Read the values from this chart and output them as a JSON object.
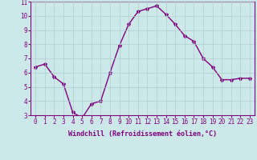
{
  "x": [
    0,
    1,
    2,
    3,
    4,
    5,
    6,
    7,
    8,
    9,
    10,
    11,
    12,
    13,
    14,
    15,
    16,
    17,
    18,
    19,
    20,
    21,
    22,
    23
  ],
  "y": [
    6.4,
    6.6,
    5.7,
    5.2,
    3.2,
    2.8,
    3.8,
    4.0,
    6.0,
    7.9,
    9.4,
    10.3,
    10.5,
    10.7,
    10.1,
    9.4,
    8.6,
    8.2,
    7.0,
    6.4,
    5.5,
    5.5,
    5.6,
    5.6
  ],
  "line_color": "#800080",
  "marker": "*",
  "marker_size": 3,
  "background_color": "#cce8e8",
  "grid_color": "#b0cccc",
  "xlabel": "Windchill (Refroidissement éolien,°C)",
  "xlabel_color": "#800080",
  "tick_color": "#800080",
  "ylim": [
    3,
    11
  ],
  "xlim": [
    -0.5,
    23.5
  ],
  "yticks": [
    3,
    4,
    5,
    6,
    7,
    8,
    9,
    10,
    11
  ],
  "xticks": [
    0,
    1,
    2,
    3,
    4,
    5,
    6,
    7,
    8,
    9,
    10,
    11,
    12,
    13,
    14,
    15,
    16,
    17,
    18,
    19,
    20,
    21,
    22,
    23
  ],
  "spine_color": "#800080",
  "tick_fontsize": 5.5,
  "xlabel_fontsize": 6,
  "linewidth": 1.0
}
